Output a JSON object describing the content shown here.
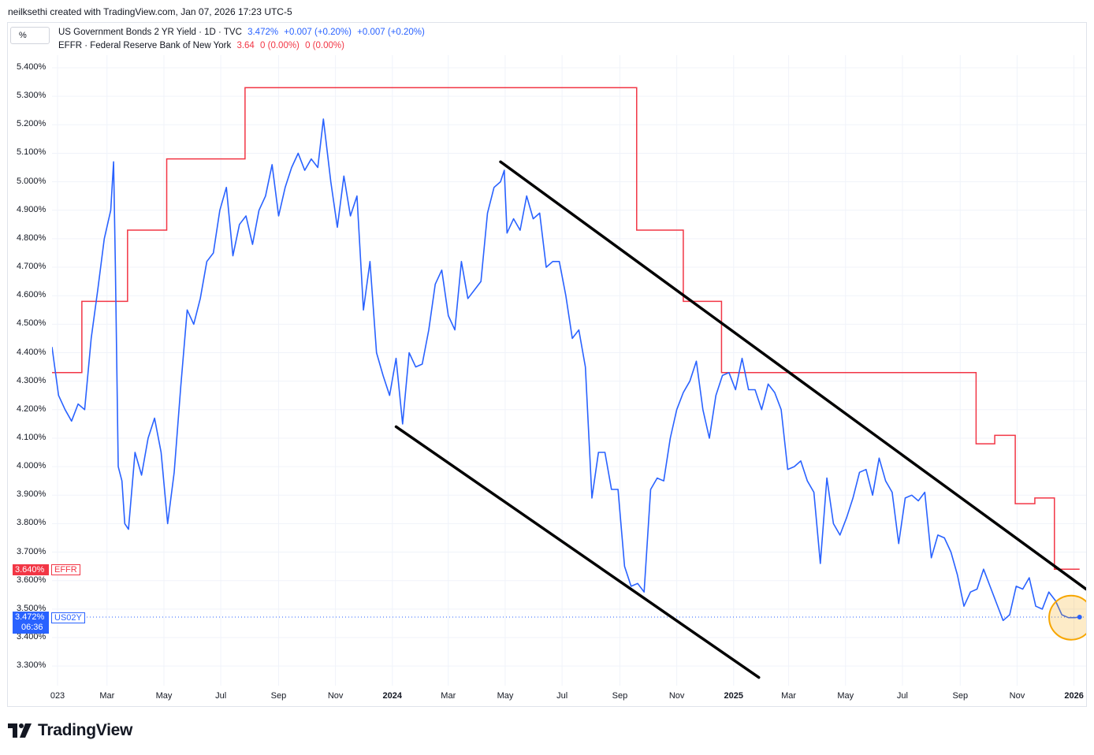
{
  "credit": "neilksethi created with TradingView.com, Jan 07, 2026 17:23 UTC-5",
  "scale_button": "%",
  "legend": {
    "us02y": {
      "title": "US Government Bonds 2 YR Yield · 1D · TVC",
      "last": "3.472%",
      "chg1": "+0.007 (+0.20%)",
      "chg2": "+0.007 (+0.20%)"
    },
    "effr": {
      "title": "EFFR · Federal Reserve Bank of New York",
      "last": "3.64",
      "chg1": "0 (0.00%)",
      "chg2": "0 (0.00%)"
    }
  },
  "y_axis": {
    "ticks": [
      "5.400%",
      "5.300%",
      "5.200%",
      "5.100%",
      "5.000%",
      "4.900%",
      "4.800%",
      "4.700%",
      "4.600%",
      "4.500%",
      "4.400%",
      "4.300%",
      "4.200%",
      "4.100%",
      "4.000%",
      "3.900%",
      "3.800%",
      "3.700%",
      "3.600%",
      "3.500%",
      "3.400%",
      "3.300%"
    ]
  },
  "x_axis": {
    "ticks": [
      "023",
      "Mar",
      "May",
      "Jul",
      "Sep",
      "Nov",
      "2024",
      "Mar",
      "May",
      "Jul",
      "Sep",
      "Nov",
      "2025",
      "Mar",
      "May",
      "Jul",
      "Sep",
      "Nov",
      "2026"
    ]
  },
  "price_tags": {
    "effr": {
      "value": "3.640%",
      "label": "EFFR"
    },
    "us02y": {
      "value": "3.472%",
      "countdown": "06:36",
      "label": "US02Y"
    }
  },
  "brand": {
    "name": "TradingView"
  },
  "colors": {
    "us02y": "#2962ff",
    "effr": "#f23645",
    "trendline": "#000000",
    "highlight": "#f7a600"
  },
  "chart_data": {
    "type": "line",
    "x_range": [
      "2023-01-01",
      "2026-01-07"
    ],
    "ylim": [
      3.25,
      5.45
    ],
    "series": [
      {
        "name": "US Government Bonds 2 YR Yield · 1D · TVC",
        "color": "#2962ff",
        "points": [
          [
            "2023-01-01",
            4.42
          ],
          [
            "2023-01-08",
            4.25
          ],
          [
            "2023-01-15",
            4.2
          ],
          [
            "2023-01-22",
            4.16
          ],
          [
            "2023-01-29",
            4.22
          ],
          [
            "2023-02-05",
            4.2
          ],
          [
            "2023-02-12",
            4.45
          ],
          [
            "2023-02-19",
            4.62
          ],
          [
            "2023-02-26",
            4.8
          ],
          [
            "2023-03-05",
            4.9
          ],
          [
            "2023-03-08",
            5.07
          ],
          [
            "2023-03-10",
            4.7
          ],
          [
            "2023-03-13",
            4.0
          ],
          [
            "2023-03-17",
            3.95
          ],
          [
            "2023-03-20",
            3.8
          ],
          [
            "2023-03-24",
            3.78
          ],
          [
            "2023-03-31",
            4.05
          ],
          [
            "2023-04-07",
            3.97
          ],
          [
            "2023-04-14",
            4.1
          ],
          [
            "2023-04-21",
            4.17
          ],
          [
            "2023-04-28",
            4.05
          ],
          [
            "2023-05-05",
            3.8
          ],
          [
            "2023-05-12",
            3.98
          ],
          [
            "2023-05-19",
            4.28
          ],
          [
            "2023-05-26",
            4.55
          ],
          [
            "2023-06-02",
            4.5
          ],
          [
            "2023-06-09",
            4.59
          ],
          [
            "2023-06-16",
            4.72
          ],
          [
            "2023-06-23",
            4.75
          ],
          [
            "2023-06-30",
            4.9
          ],
          [
            "2023-07-07",
            4.98
          ],
          [
            "2023-07-14",
            4.74
          ],
          [
            "2023-07-21",
            4.85
          ],
          [
            "2023-07-28",
            4.88
          ],
          [
            "2023-08-04",
            4.78
          ],
          [
            "2023-08-11",
            4.9
          ],
          [
            "2023-08-18",
            4.95
          ],
          [
            "2023-08-25",
            5.06
          ],
          [
            "2023-09-01",
            4.88
          ],
          [
            "2023-09-08",
            4.98
          ],
          [
            "2023-09-15",
            5.05
          ],
          [
            "2023-09-22",
            5.1
          ],
          [
            "2023-09-29",
            5.04
          ],
          [
            "2023-10-06",
            5.08
          ],
          [
            "2023-10-13",
            5.05
          ],
          [
            "2023-10-19",
            5.22
          ],
          [
            "2023-10-27",
            5.0
          ],
          [
            "2023-11-03",
            4.84
          ],
          [
            "2023-11-10",
            5.02
          ],
          [
            "2023-11-17",
            4.88
          ],
          [
            "2023-11-24",
            4.95
          ],
          [
            "2023-12-01",
            4.55
          ],
          [
            "2023-12-08",
            4.72
          ],
          [
            "2023-12-15",
            4.4
          ],
          [
            "2023-12-22",
            4.32
          ],
          [
            "2023-12-29",
            4.25
          ],
          [
            "2024-01-05",
            4.38
          ],
          [
            "2024-01-12",
            4.15
          ],
          [
            "2024-01-19",
            4.4
          ],
          [
            "2024-01-26",
            4.35
          ],
          [
            "2024-02-02",
            4.36
          ],
          [
            "2024-02-09",
            4.48
          ],
          [
            "2024-02-16",
            4.64
          ],
          [
            "2024-02-23",
            4.69
          ],
          [
            "2024-03-01",
            4.53
          ],
          [
            "2024-03-08",
            4.48
          ],
          [
            "2024-03-15",
            4.72
          ],
          [
            "2024-03-22",
            4.59
          ],
          [
            "2024-03-29",
            4.62
          ],
          [
            "2024-04-05",
            4.65
          ],
          [
            "2024-04-12",
            4.89
          ],
          [
            "2024-04-19",
            4.98
          ],
          [
            "2024-04-26",
            5.0
          ],
          [
            "2024-04-30",
            5.04
          ],
          [
            "2024-05-03",
            4.82
          ],
          [
            "2024-05-10",
            4.87
          ],
          [
            "2024-05-17",
            4.83
          ],
          [
            "2024-05-24",
            4.95
          ],
          [
            "2024-05-31",
            4.87
          ],
          [
            "2024-06-07",
            4.89
          ],
          [
            "2024-06-14",
            4.7
          ],
          [
            "2024-06-21",
            4.72
          ],
          [
            "2024-06-28",
            4.72
          ],
          [
            "2024-07-05",
            4.6
          ],
          [
            "2024-07-12",
            4.45
          ],
          [
            "2024-07-19",
            4.48
          ],
          [
            "2024-07-26",
            4.35
          ],
          [
            "2024-08-02",
            3.89
          ],
          [
            "2024-08-09",
            4.05
          ],
          [
            "2024-08-16",
            4.05
          ],
          [
            "2024-08-23",
            3.92
          ],
          [
            "2024-08-30",
            3.92
          ],
          [
            "2024-09-06",
            3.65
          ],
          [
            "2024-09-13",
            3.58
          ],
          [
            "2024-09-20",
            3.59
          ],
          [
            "2024-09-27",
            3.56
          ],
          [
            "2024-10-04",
            3.92
          ],
          [
            "2024-10-11",
            3.96
          ],
          [
            "2024-10-18",
            3.95
          ],
          [
            "2024-10-25",
            4.1
          ],
          [
            "2024-11-01",
            4.2
          ],
          [
            "2024-11-08",
            4.26
          ],
          [
            "2024-11-15",
            4.3
          ],
          [
            "2024-11-22",
            4.37
          ],
          [
            "2024-11-29",
            4.2
          ],
          [
            "2024-12-06",
            4.1
          ],
          [
            "2024-12-13",
            4.25
          ],
          [
            "2024-12-20",
            4.32
          ],
          [
            "2024-12-27",
            4.33
          ],
          [
            "2025-01-03",
            4.27
          ],
          [
            "2025-01-10",
            4.38
          ],
          [
            "2025-01-17",
            4.27
          ],
          [
            "2025-01-24",
            4.27
          ],
          [
            "2025-01-31",
            4.2
          ],
          [
            "2025-02-07",
            4.29
          ],
          [
            "2025-02-14",
            4.26
          ],
          [
            "2025-02-21",
            4.2
          ],
          [
            "2025-02-28",
            3.99
          ],
          [
            "2025-03-07",
            4.0
          ],
          [
            "2025-03-14",
            4.02
          ],
          [
            "2025-03-21",
            3.95
          ],
          [
            "2025-03-28",
            3.91
          ],
          [
            "2025-04-04",
            3.66
          ],
          [
            "2025-04-11",
            3.96
          ],
          [
            "2025-04-18",
            3.8
          ],
          [
            "2025-04-25",
            3.76
          ],
          [
            "2025-05-02",
            3.82
          ],
          [
            "2025-05-09",
            3.89
          ],
          [
            "2025-05-16",
            3.98
          ],
          [
            "2025-05-23",
            3.99
          ],
          [
            "2025-05-30",
            3.9
          ],
          [
            "2025-06-06",
            4.03
          ],
          [
            "2025-06-13",
            3.95
          ],
          [
            "2025-06-20",
            3.91
          ],
          [
            "2025-06-27",
            3.73
          ],
          [
            "2025-07-04",
            3.89
          ],
          [
            "2025-07-11",
            3.9
          ],
          [
            "2025-07-18",
            3.88
          ],
          [
            "2025-07-25",
            3.91
          ],
          [
            "2025-08-01",
            3.68
          ],
          [
            "2025-08-08",
            3.76
          ],
          [
            "2025-08-15",
            3.75
          ],
          [
            "2025-08-22",
            3.7
          ],
          [
            "2025-08-29",
            3.62
          ],
          [
            "2025-09-05",
            3.51
          ],
          [
            "2025-09-12",
            3.56
          ],
          [
            "2025-09-19",
            3.57
          ],
          [
            "2025-09-26",
            3.64
          ],
          [
            "2025-10-03",
            3.58
          ],
          [
            "2025-10-10",
            3.52
          ],
          [
            "2025-10-17",
            3.46
          ],
          [
            "2025-10-24",
            3.48
          ],
          [
            "2025-10-31",
            3.58
          ],
          [
            "2025-11-07",
            3.57
          ],
          [
            "2025-11-14",
            3.61
          ],
          [
            "2025-11-21",
            3.51
          ],
          [
            "2025-11-28",
            3.5
          ],
          [
            "2025-12-05",
            3.56
          ],
          [
            "2025-12-12",
            3.53
          ],
          [
            "2025-12-19",
            3.48
          ],
          [
            "2025-12-26",
            3.47
          ],
          [
            "2026-01-02",
            3.47
          ],
          [
            "2026-01-07",
            3.472
          ]
        ]
      },
      {
        "name": "EFFR · Federal Reserve Bank of New York",
        "color": "#f23645",
        "step": true,
        "points": [
          [
            "2023-01-01",
            4.33
          ],
          [
            "2023-02-02",
            4.58
          ],
          [
            "2023-03-23",
            4.83
          ],
          [
            "2023-05-04",
            5.08
          ],
          [
            "2023-07-27",
            5.33
          ],
          [
            "2024-09-19",
            4.83
          ],
          [
            "2024-11-08",
            4.58
          ],
          [
            "2024-12-19",
            4.33
          ],
          [
            "2025-09-18",
            4.08
          ],
          [
            "2025-10-08",
            4.11
          ],
          [
            "2025-10-30",
            3.87
          ],
          [
            "2025-11-20",
            3.89
          ],
          [
            "2025-12-11",
            3.64
          ],
          [
            "2026-01-07",
            3.64
          ]
        ]
      }
    ],
    "trendlines": [
      {
        "from": [
          "2024-04-26",
          5.07
        ],
        "to": [
          "2026-01-14",
          3.57
        ]
      },
      {
        "from": [
          "2024-01-05",
          4.14
        ],
        "to": [
          "2025-01-28",
          3.26
        ]
      }
    ],
    "highlight_circle": {
      "center": [
        "2025-12-29",
        3.47
      ]
    },
    "last_value_line": 3.472,
    "grid": true
  }
}
